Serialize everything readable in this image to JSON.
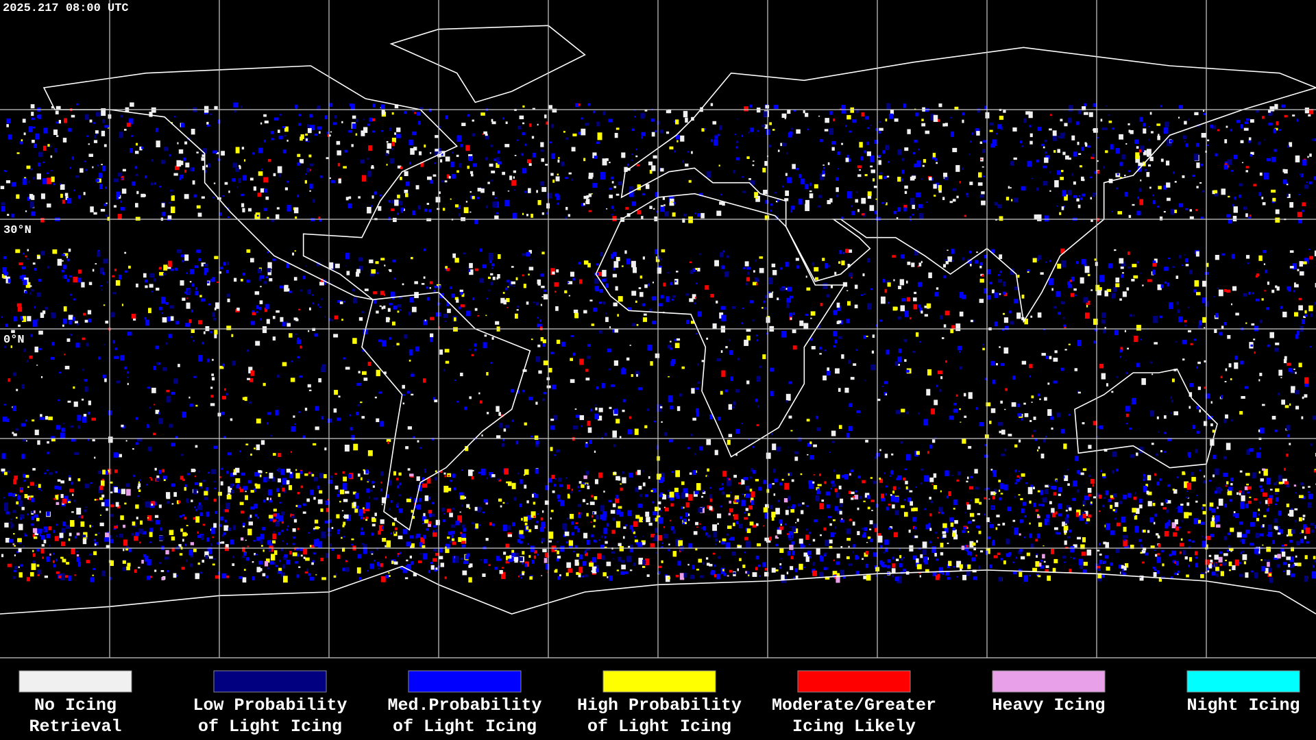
{
  "header": {
    "timestamp": "2025.217 08:00 UTC"
  },
  "map": {
    "latitude_labels": [
      "30°N",
      "0°N"
    ]
  },
  "legend": [
    {
      "lines": [
        "No Icing",
        "Retrieval"
      ],
      "color": "#f0f0f0"
    },
    {
      "lines": [
        "Low Probability",
        "of Light Icing"
      ],
      "color": "#000080"
    },
    {
      "lines": [
        "Med.Probability",
        "of Light Icing"
      ],
      "color": "#0000ff"
    },
    {
      "lines": [
        "High Probability",
        "of Light Icing"
      ],
      "color": "#ffff00"
    },
    {
      "lines": [
        "Moderate/Greater",
        "Icing Likely"
      ],
      "color": "#ff0000"
    },
    {
      "lines": [
        "Heavy Icing"
      ],
      "color": "#e8a0e8"
    },
    {
      "lines": [
        "Night Icing"
      ],
      "color": "#00ffff"
    }
  ]
}
